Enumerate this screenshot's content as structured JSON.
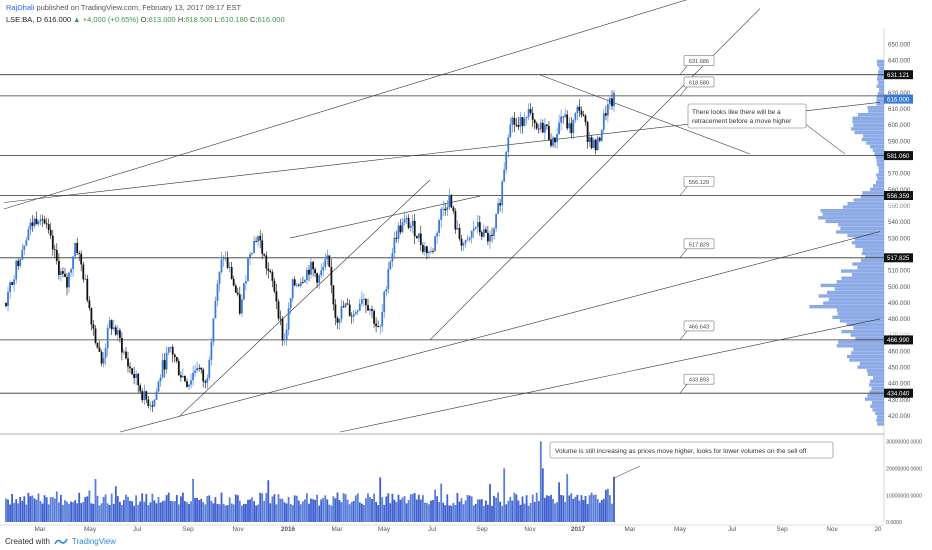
{
  "header": {
    "author": "RajDhali",
    "published_text": "published on TradingView.com, February 13, 2017 09:17 EST",
    "symbol": "LSE:BA, D",
    "last": "616.000",
    "change": "+4.000 (+0.65%)",
    "open_label": "O:",
    "open": "613.000",
    "high_label": "H:",
    "high": "618.500",
    "low_label": "L:",
    "low": "610.180",
    "close_label": "C:",
    "close": "616.000"
  },
  "footer": {
    "created_with": "Created with",
    "brand": "TradingView"
  },
  "colors": {
    "candle_up": "#3b79d8",
    "candle_down": "#111111",
    "volume_profile": "#6f95e0",
    "volume_bar": "#5a7fd8",
    "line": "#333333",
    "label_box_fill": "#ffffff",
    "price_tag_fill": "#111111"
  },
  "chart_data": {
    "type": "candlestick",
    "x_axis_labels": [
      "Mar",
      "May",
      "Jul",
      "Sep",
      "Nov",
      "2016",
      "Mar",
      "May",
      "Jul",
      "Sep",
      "Nov",
      "2017",
      "Mar",
      "May",
      "Jul",
      "Sep",
      "Nov",
      "20"
    ],
    "price_axis": {
      "range": [
        410,
        660
      ],
      "ticks": [
        "650.000",
        "640.000",
        "630.000",
        "620.000",
        "610.000",
        "600.000",
        "590.000",
        "570.000",
        "560.000",
        "550.000",
        "540.000",
        "530.000",
        "510.000",
        "500.000",
        "490.000",
        "480.000",
        "460.000",
        "450.000",
        "440.000",
        "430.000",
        "420.000"
      ],
      "highlighted": [
        "631.121",
        "616.000",
        "581.060",
        "556.359",
        "517.825",
        "466.990",
        "434.040"
      ],
      "faint": [
        "618.077",
        "550.000",
        "470.000"
      ]
    },
    "volume_axis": {
      "range": [
        0,
        32000000
      ],
      "ticks": [
        "30000000.0000",
        "20000000.0000",
        "10000000.0000",
        "0.0000"
      ]
    },
    "horizontal_levels": [
      631.121,
      618.0,
      581.06,
      556.359,
      517.825,
      466.99,
      434.04
    ],
    "level_labels": [
      {
        "text": "631.686",
        "price": 631.121
      },
      {
        "text": "618.580",
        "price": 618.0
      },
      {
        "text": "556.129",
        "price": 556.359
      },
      {
        "text": "517.829",
        "price": 517.825
      },
      {
        "text": "466.643",
        "price": 466.99
      },
      {
        "text": "433.893",
        "price": 434.04
      }
    ],
    "annotations": [
      {
        "text": "There looks like there will be a retracement before a move higher"
      },
      {
        "text": "Volume is still increasing as prices move higher, looks for lower volumes on the sell off"
      }
    ],
    "price_path": [
      [
        0,
        490
      ],
      [
        0.02,
        510
      ],
      [
        0.05,
        535
      ],
      [
        0.08,
        546
      ],
      [
        0.1,
        530
      ],
      [
        0.12,
        512
      ],
      [
        0.14,
        500
      ],
      [
        0.16,
        528
      ],
      [
        0.18,
        505
      ],
      [
        0.2,
        476
      ],
      [
        0.22,
        452
      ],
      [
        0.24,
        478
      ],
      [
        0.26,
        468
      ],
      [
        0.28,
        452
      ],
      [
        0.3,
        442
      ],
      [
        0.32,
        430
      ],
      [
        0.34,
        428
      ],
      [
        0.36,
        450
      ],
      [
        0.38,
        462
      ],
      [
        0.4,
        447
      ],
      [
        0.42,
        440
      ],
      [
        0.44,
        452
      ],
      [
        0.46,
        438
      ],
      [
        0.48,
        488
      ],
      [
        0.5,
        520
      ],
      [
        0.52,
        506
      ],
      [
        0.54,
        484
      ],
      [
        0.56,
        522
      ],
      [
        0.58,
        532
      ],
      [
        0.6,
        512
      ],
      [
        0.62,
        497
      ],
      [
        0.64,
        464
      ],
      [
        0.66,
        500
      ],
      [
        0.68,
        505
      ],
      [
        0.7,
        512
      ],
      [
        0.72,
        505
      ],
      [
        0.74,
        516
      ],
      [
        0.76,
        480
      ],
      [
        0.78,
        488
      ],
      [
        0.8,
        482
      ],
      [
        0.82,
        495
      ],
      [
        0.84,
        486
      ],
      [
        0.86,
        470
      ],
      [
        0.88,
        512
      ],
      [
        0.9,
        534
      ],
      [
        0.92,
        540
      ],
      [
        0.94,
        536
      ],
      [
        0.96,
        525
      ],
      [
        0.98,
        520
      ],
      [
        1.0,
        545
      ],
      [
        1.02,
        555
      ],
      [
        1.04,
        532
      ],
      [
        1.06,
        524
      ],
      [
        1.08,
        538
      ],
      [
        1.1,
        532
      ],
      [
        1.12,
        528
      ],
      [
        1.14,
        558
      ],
      [
        1.16,
        605
      ],
      [
        1.18,
        598
      ],
      [
        1.2,
        610
      ],
      [
        1.22,
        595
      ],
      [
        1.24,
        600
      ],
      [
        1.26,
        588
      ],
      [
        1.28,
        607
      ],
      [
        1.3,
        596
      ],
      [
        1.32,
        612
      ],
      [
        1.34,
        593
      ],
      [
        1.36,
        585
      ],
      [
        1.38,
        608
      ],
      [
        1.4,
        616
      ]
    ]
  }
}
